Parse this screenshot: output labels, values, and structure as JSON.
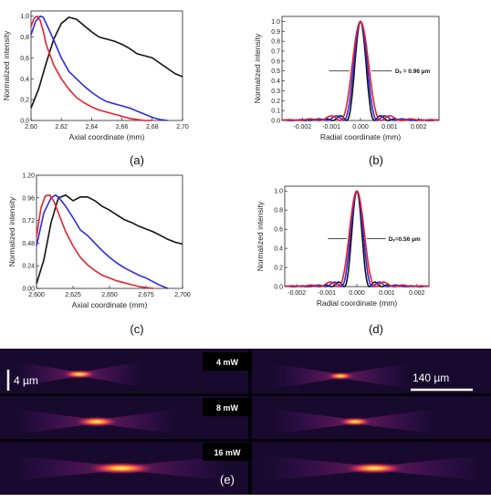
{
  "colors": {
    "black": "#111111",
    "red": "#e8202a",
    "blue": "#2a2ae6",
    "strip_bg": "#180a2e"
  },
  "chart_data": [
    {
      "panel": "(a)",
      "type": "line",
      "xlabel": "Axial coordinate (mm)",
      "ylabel": "Normalized intensity",
      "xlim": [
        2.6,
        2.7
      ],
      "ylim": [
        0,
        1.05
      ],
      "xticks": [
        2.6,
        2.62,
        2.64,
        2.66,
        2.68,
        2.7
      ],
      "xtick_labels": [
        "2,60",
        "2,62",
        "2,64",
        "2,66",
        "2,68",
        "2,70"
      ],
      "yticks": [
        0,
        0.2,
        0.4,
        0.6,
        0.8,
        1.0
      ],
      "ytick_labels": [
        "0,0",
        "0,2",
        "0,4",
        "0,6",
        "0,8",
        "1,0"
      ],
      "series": [
        {
          "color": "black",
          "x": [
            2.6,
            2.605,
            2.61,
            2.615,
            2.62,
            2.625,
            2.63,
            2.635,
            2.64,
            2.645,
            2.65,
            2.655,
            2.66,
            2.665,
            2.67,
            2.675,
            2.68,
            2.685,
            2.69,
            2.695,
            2.7
          ],
          "y": [
            0.12,
            0.3,
            0.55,
            0.78,
            0.93,
            0.99,
            0.97,
            0.91,
            0.85,
            0.8,
            0.78,
            0.76,
            0.73,
            0.69,
            0.64,
            0.62,
            0.6,
            0.55,
            0.5,
            0.45,
            0.42
          ]
        },
        {
          "color": "blue",
          "x": [
            2.6,
            2.603,
            2.606,
            2.608,
            2.61,
            2.615,
            2.62,
            2.625,
            2.63,
            2.635,
            2.64,
            2.645,
            2.65,
            2.655,
            2.66,
            2.665,
            2.67,
            2.675,
            2.68,
            2.685,
            2.69
          ],
          "y": [
            0.82,
            0.95,
            1.0,
            0.99,
            0.93,
            0.77,
            0.6,
            0.47,
            0.4,
            0.33,
            0.27,
            0.22,
            0.18,
            0.16,
            0.14,
            0.12,
            0.09,
            0.06,
            0.03,
            0.01,
            0.0
          ]
        },
        {
          "color": "red",
          "x": [
            2.6,
            2.602,
            2.604,
            2.606,
            2.608,
            2.61,
            2.615,
            2.62,
            2.625,
            2.63,
            2.635,
            2.64,
            2.645,
            2.65,
            2.655,
            2.66,
            2.665,
            2.67,
            2.675,
            2.68
          ],
          "y": [
            0.9,
            0.98,
            1.0,
            0.96,
            0.86,
            0.73,
            0.53,
            0.4,
            0.3,
            0.22,
            0.17,
            0.13,
            0.1,
            0.08,
            0.06,
            0.04,
            0.02,
            0.01,
            0.0,
            0.0
          ]
        }
      ]
    },
    {
      "panel": "(b)",
      "type": "line",
      "xlabel": "Radial coordinate (mm)",
      "ylabel": "Normalized intensity",
      "xlim": [
        -0.0027,
        0.0027
      ],
      "ylim": [
        0,
        1.05
      ],
      "xticks": [
        -0.002,
        -0.001,
        0.0,
        0.001,
        0.002
      ],
      "xtick_labels": [
        "-0.002",
        "-0.001",
        "0.000",
        "0.001",
        "0.002"
      ],
      "yticks": [
        0,
        0.1,
        0.2,
        0.3,
        0.4,
        0.5,
        0.6,
        0.7,
        0.8,
        0.9,
        1.0
      ],
      "ytick_labels": [
        "0.0",
        "0.1",
        "0.2",
        "0.3",
        "0.4",
        "0.5",
        "0.6",
        "0.7",
        "0.8",
        "0.9",
        "1.0"
      ],
      "annotation": {
        "text": "Dₓ = 0.96 µm",
        "y": 0.5
      },
      "series": [
        {
          "color": "black",
          "width_mm": 0.00048,
          "side_peak": 0.12
        },
        {
          "color": "blue",
          "width_mm": 0.00058,
          "side_peak": 0.12
        },
        {
          "color": "red",
          "width_mm": 0.0007,
          "side_peak": 0.12
        }
      ]
    },
    {
      "panel": "(c)",
      "type": "line",
      "xlabel": "Axial coordinate (mm)",
      "ylabel": "Normalized intensity",
      "xlim": [
        2.6,
        2.7
      ],
      "ylim": [
        0,
        1.2
      ],
      "xticks": [
        2.6,
        2.625,
        2.65,
        2.675,
        2.7
      ],
      "xtick_labels": [
        "2,600",
        "2,625",
        "2,650",
        "2,675",
        "2,700"
      ],
      "yticks": [
        0,
        0.24,
        0.48,
        0.72,
        0.96,
        1.2
      ],
      "ytick_labels": [
        "0.00",
        "0.24",
        "0.48",
        "0.72",
        "0.96",
        "1.20"
      ],
      "series": [
        {
          "color": "black",
          "x": [
            2.6,
            2.605,
            2.61,
            2.615,
            2.62,
            2.625,
            2.63,
            2.635,
            2.64,
            2.645,
            2.65,
            2.655,
            2.66,
            2.665,
            2.67,
            2.675,
            2.68,
            2.685,
            2.69,
            2.695,
            2.7
          ],
          "y": [
            0.05,
            0.3,
            0.7,
            0.96,
            0.99,
            0.93,
            0.97,
            0.97,
            0.93,
            0.87,
            0.83,
            0.78,
            0.73,
            0.7,
            0.66,
            0.63,
            0.6,
            0.56,
            0.52,
            0.49,
            0.47
          ]
        },
        {
          "color": "blue",
          "x": [
            2.6,
            2.605,
            2.61,
            2.613,
            2.615,
            2.62,
            2.625,
            2.63,
            2.635,
            2.64,
            2.645,
            2.65,
            2.655,
            2.66,
            2.665,
            2.67,
            2.675,
            2.68,
            2.685,
            2.69
          ],
          "y": [
            0.45,
            0.8,
            0.96,
            0.99,
            0.97,
            0.87,
            0.75,
            0.62,
            0.56,
            0.48,
            0.4,
            0.33,
            0.27,
            0.22,
            0.18,
            0.14,
            0.11,
            0.07,
            0.03,
            0.0
          ]
        },
        {
          "color": "red",
          "x": [
            2.6,
            2.603,
            2.606,
            2.609,
            2.612,
            2.615,
            2.62,
            2.625,
            2.63,
            2.635,
            2.64,
            2.645,
            2.65,
            2.655,
            2.66,
            2.665,
            2.67,
            2.675,
            2.68
          ],
          "y": [
            0.55,
            0.85,
            0.98,
            0.99,
            0.92,
            0.8,
            0.6,
            0.45,
            0.33,
            0.25,
            0.19,
            0.14,
            0.11,
            0.08,
            0.06,
            0.04,
            0.02,
            0.01,
            0.0
          ]
        }
      ]
    },
    {
      "panel": "(d)",
      "type": "line",
      "xlabel": "Radial coordinate (mm)",
      "ylabel": "Normalized intensity",
      "xlim": [
        -0.0024,
        0.0024
      ],
      "ylim": [
        0,
        1.05
      ],
      "xticks": [
        -0.002,
        -0.001,
        0.0,
        0.001,
        0.002
      ],
      "xtick_labels": [
        "-0.002",
        "-0.001",
        "0.000",
        "0.001",
        "0.002"
      ],
      "yticks": [
        0,
        0.2,
        0.4,
        0.6,
        0.8,
        1.0
      ],
      "ytick_labels": [
        "0.0",
        "0.2",
        "0.4",
        "0.6",
        "0.8",
        "1.0"
      ],
      "annotation": {
        "text": "Dₓ=0.56 µm",
        "y": 0.5
      },
      "series": [
        {
          "color": "black",
          "width_mm": 0.00042,
          "side_peak": 0.12
        },
        {
          "color": "blue",
          "width_mm": 0.00052,
          "side_peak": 0.12
        },
        {
          "color": "red",
          "width_mm": 0.00062,
          "side_peak": 0.12
        }
      ]
    }
  ],
  "strips": {
    "labels": [
      "4 mW",
      "8 mW",
      "16 mW"
    ],
    "scale_left": "4 µm",
    "scale_right": "140 µm",
    "panel_letter": "(e)"
  }
}
